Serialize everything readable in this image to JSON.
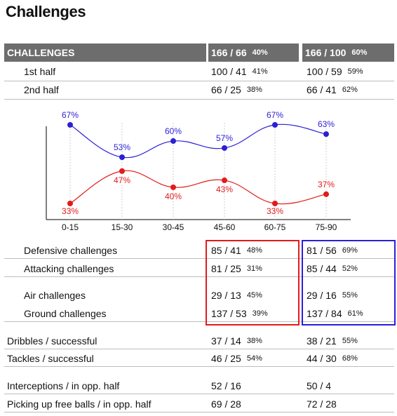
{
  "title": "Challenges",
  "header": {
    "label": "CHALLENGES",
    "col1": "166 / 66",
    "col1_pct": "40%",
    "col2": "166 / 100",
    "col2_pct": "60%"
  },
  "halves": [
    {
      "label": "1st half",
      "v1": "100 / 41",
      "p1": "41%",
      "v2": "100 / 59",
      "p2": "59%"
    },
    {
      "label": "2nd half",
      "v1": "66 / 25",
      "p1": "38%",
      "v2": "66 / 41",
      "p2": "62%"
    }
  ],
  "chart_data": {
    "type": "line",
    "categories": [
      "0-15",
      "15-30",
      "30-45",
      "45-60",
      "60-75",
      "75-90"
    ],
    "series": [
      {
        "values": [
          67,
          53,
          60,
          57,
          67,
          63
        ],
        "labels": [
          "67%",
          "53%",
          "60%",
          "57%",
          "67%",
          "63%"
        ],
        "color": "#2b1fd6"
      },
      {
        "values": [
          33,
          47,
          40,
          43,
          33,
          37
        ],
        "labels": [
          "33%",
          "47%",
          "40%",
          "43%",
          "33%",
          "37%"
        ],
        "color": "#e21b1b"
      }
    ],
    "grid": "vertical-dotted"
  },
  "detail_rows": [
    {
      "label": "Defensive challenges",
      "v1": "85 / 41",
      "p1": "48%",
      "v2": "81 / 56",
      "p2": "69%"
    },
    {
      "label": "Attacking challenges",
      "v1": "81 / 25",
      "p1": "31%",
      "v2": "85 / 44",
      "p2": "52%"
    },
    {
      "label": "Air challenges",
      "v1": "29 / 13",
      "p1": "45%",
      "v2": "29 / 16",
      "p2": "55%"
    },
    {
      "label": "Ground challenges",
      "v1": "137 / 53",
      "p1": "39%",
      "v2": "137 / 84",
      "p2": "61%"
    },
    {
      "label": "Dribbles / successful",
      "v1": "37 / 14",
      "p1": "38%",
      "v2": "38 / 21",
      "p2": "55%"
    },
    {
      "label": "Tackles / successful",
      "v1": "46 / 25",
      "p1": "54%",
      "v2": "44 / 30",
      "p2": "68%"
    },
    {
      "label": "Interceptions / in opp. half",
      "v1": "52 / 16",
      "p1": "",
      "v2": "50 / 4",
      "p2": ""
    },
    {
      "label": "Picking up free balls / in opp. half",
      "v1": "69 / 28",
      "p1": "",
      "v2": "72 / 28",
      "p2": ""
    }
  ],
  "colors": {
    "header_bg": "#6d6d6d",
    "team1_box": "#e21b1b",
    "team2_box": "#2b1fd6"
  }
}
